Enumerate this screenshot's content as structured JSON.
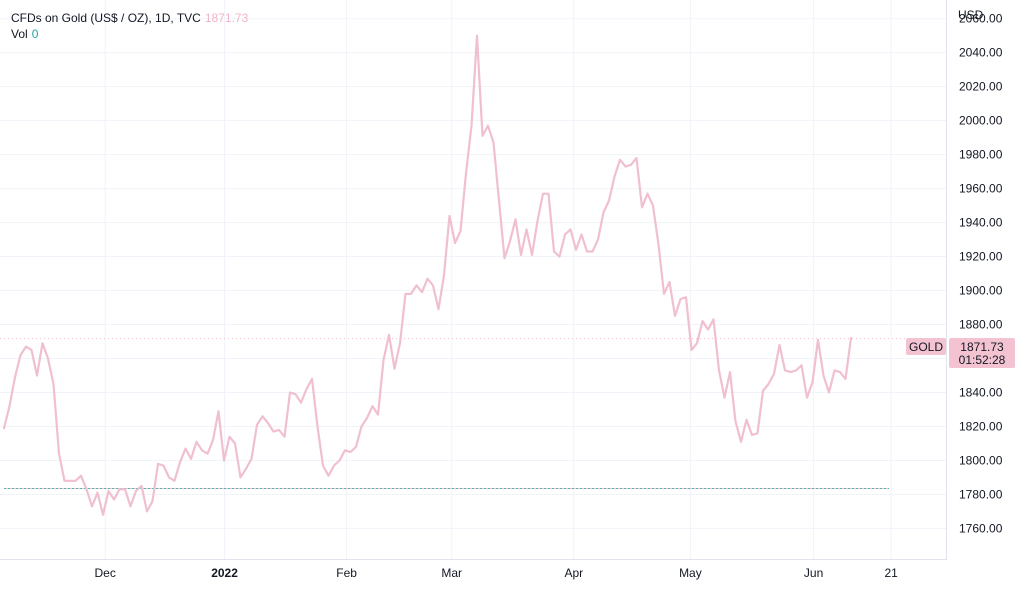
{
  "legend": {
    "symbol": "CFDs on Gold (US$ / OZ), 1D, TVC",
    "last": "1871.73",
    "vol_label": "Vol",
    "vol_value": "0"
  },
  "price_scale": {
    "currency": "USD"
  },
  "price_tag": {
    "name": "GOLD",
    "value": "1871.73",
    "countdown": "01:52:28"
  },
  "colors": {
    "line": "#f0bfd0",
    "label_bg": "#f3c3d2",
    "volume_line": "#26a69a",
    "grid": "#f0f3fa"
  },
  "chart_data": {
    "type": "line",
    "ylim": [
      1742,
      2071
    ],
    "y_ticks": [
      1760,
      1780,
      1800,
      1820,
      1840,
      1860,
      1880,
      1900,
      1920,
      1940,
      1960,
      1980,
      2000,
      2020,
      2040,
      2060
    ],
    "y_tick_labels": [
      "1760.00",
      "1780.00",
      "1800.00",
      "1820.00",
      "1840.00",
      "1860.00",
      "1880.00",
      "1900.00",
      "1920.00",
      "1940.00",
      "1960.00",
      "1980.00",
      "2000.00",
      "2020.00",
      "2040.00",
      "2060.00"
    ],
    "x_ticks": [
      {
        "label": "Dec",
        "pos": 18.4,
        "bold": false
      },
      {
        "label": "2022",
        "pos": 40.1,
        "bold": true
      },
      {
        "label": "Feb",
        "pos": 62.3,
        "bold": false
      },
      {
        "label": "Mar",
        "pos": 81.4,
        "bold": false
      },
      {
        "label": "Apr",
        "pos": 103.6,
        "bold": false
      },
      {
        "label": "May",
        "pos": 124.8,
        "bold": false
      },
      {
        "label": "Jun",
        "pos": 147.2,
        "bold": false
      },
      {
        "label": "21",
        "pos": 161.3,
        "bold": false
      }
    ],
    "series": [
      {
        "values": [
          1819,
          1832,
          1849,
          1862,
          1867,
          1865,
          1850,
          1869,
          1860,
          1845,
          1804,
          1788,
          1788,
          1788,
          1791,
          1783,
          1773,
          1781,
          1768,
          1782,
          1777,
          1783,
          1783,
          1773,
          1782,
          1785,
          1770,
          1776,
          1798,
          1797,
          1790,
          1788,
          1799,
          1807,
          1801,
          1811,
          1806,
          1804,
          1812,
          1829,
          1800,
          1814,
          1810,
          1790,
          1795,
          1801,
          1821,
          1826,
          1822,
          1817,
          1818,
          1814,
          1840,
          1839,
          1834,
          1842,
          1848,
          1820,
          1797,
          1791,
          1797,
          1800,
          1806,
          1805,
          1808,
          1820,
          1825,
          1832,
          1827,
          1859,
          1874,
          1854,
          1869,
          1898,
          1898,
          1903,
          1899,
          1907,
          1903,
          1889,
          1909,
          1944,
          1928,
          1935,
          1969,
          1997,
          2050,
          1991,
          1997,
          1987,
          1953,
          1919,
          1929,
          1942,
          1921,
          1936,
          1921,
          1941,
          1957,
          1957,
          1923,
          1920,
          1933,
          1936,
          1924,
          1933,
          1923,
          1923,
          1930,
          1946,
          1953,
          1967,
          1977,
          1973,
          1974,
          1978,
          1949,
          1957,
          1950,
          1927,
          1898,
          1905,
          1885,
          1895,
          1896,
          1865,
          1869,
          1882,
          1877,
          1883,
          1853,
          1837,
          1852,
          1823,
          1811,
          1824,
          1815,
          1816,
          1841,
          1845,
          1851,
          1868,
          1853,
          1852,
          1853,
          1856,
          1837,
          1846,
          1871,
          1850,
          1840,
          1853,
          1852,
          1848,
          1872
        ]
      }
    ],
    "volume_line_value": 1783.5,
    "last_value": 1871.73
  }
}
